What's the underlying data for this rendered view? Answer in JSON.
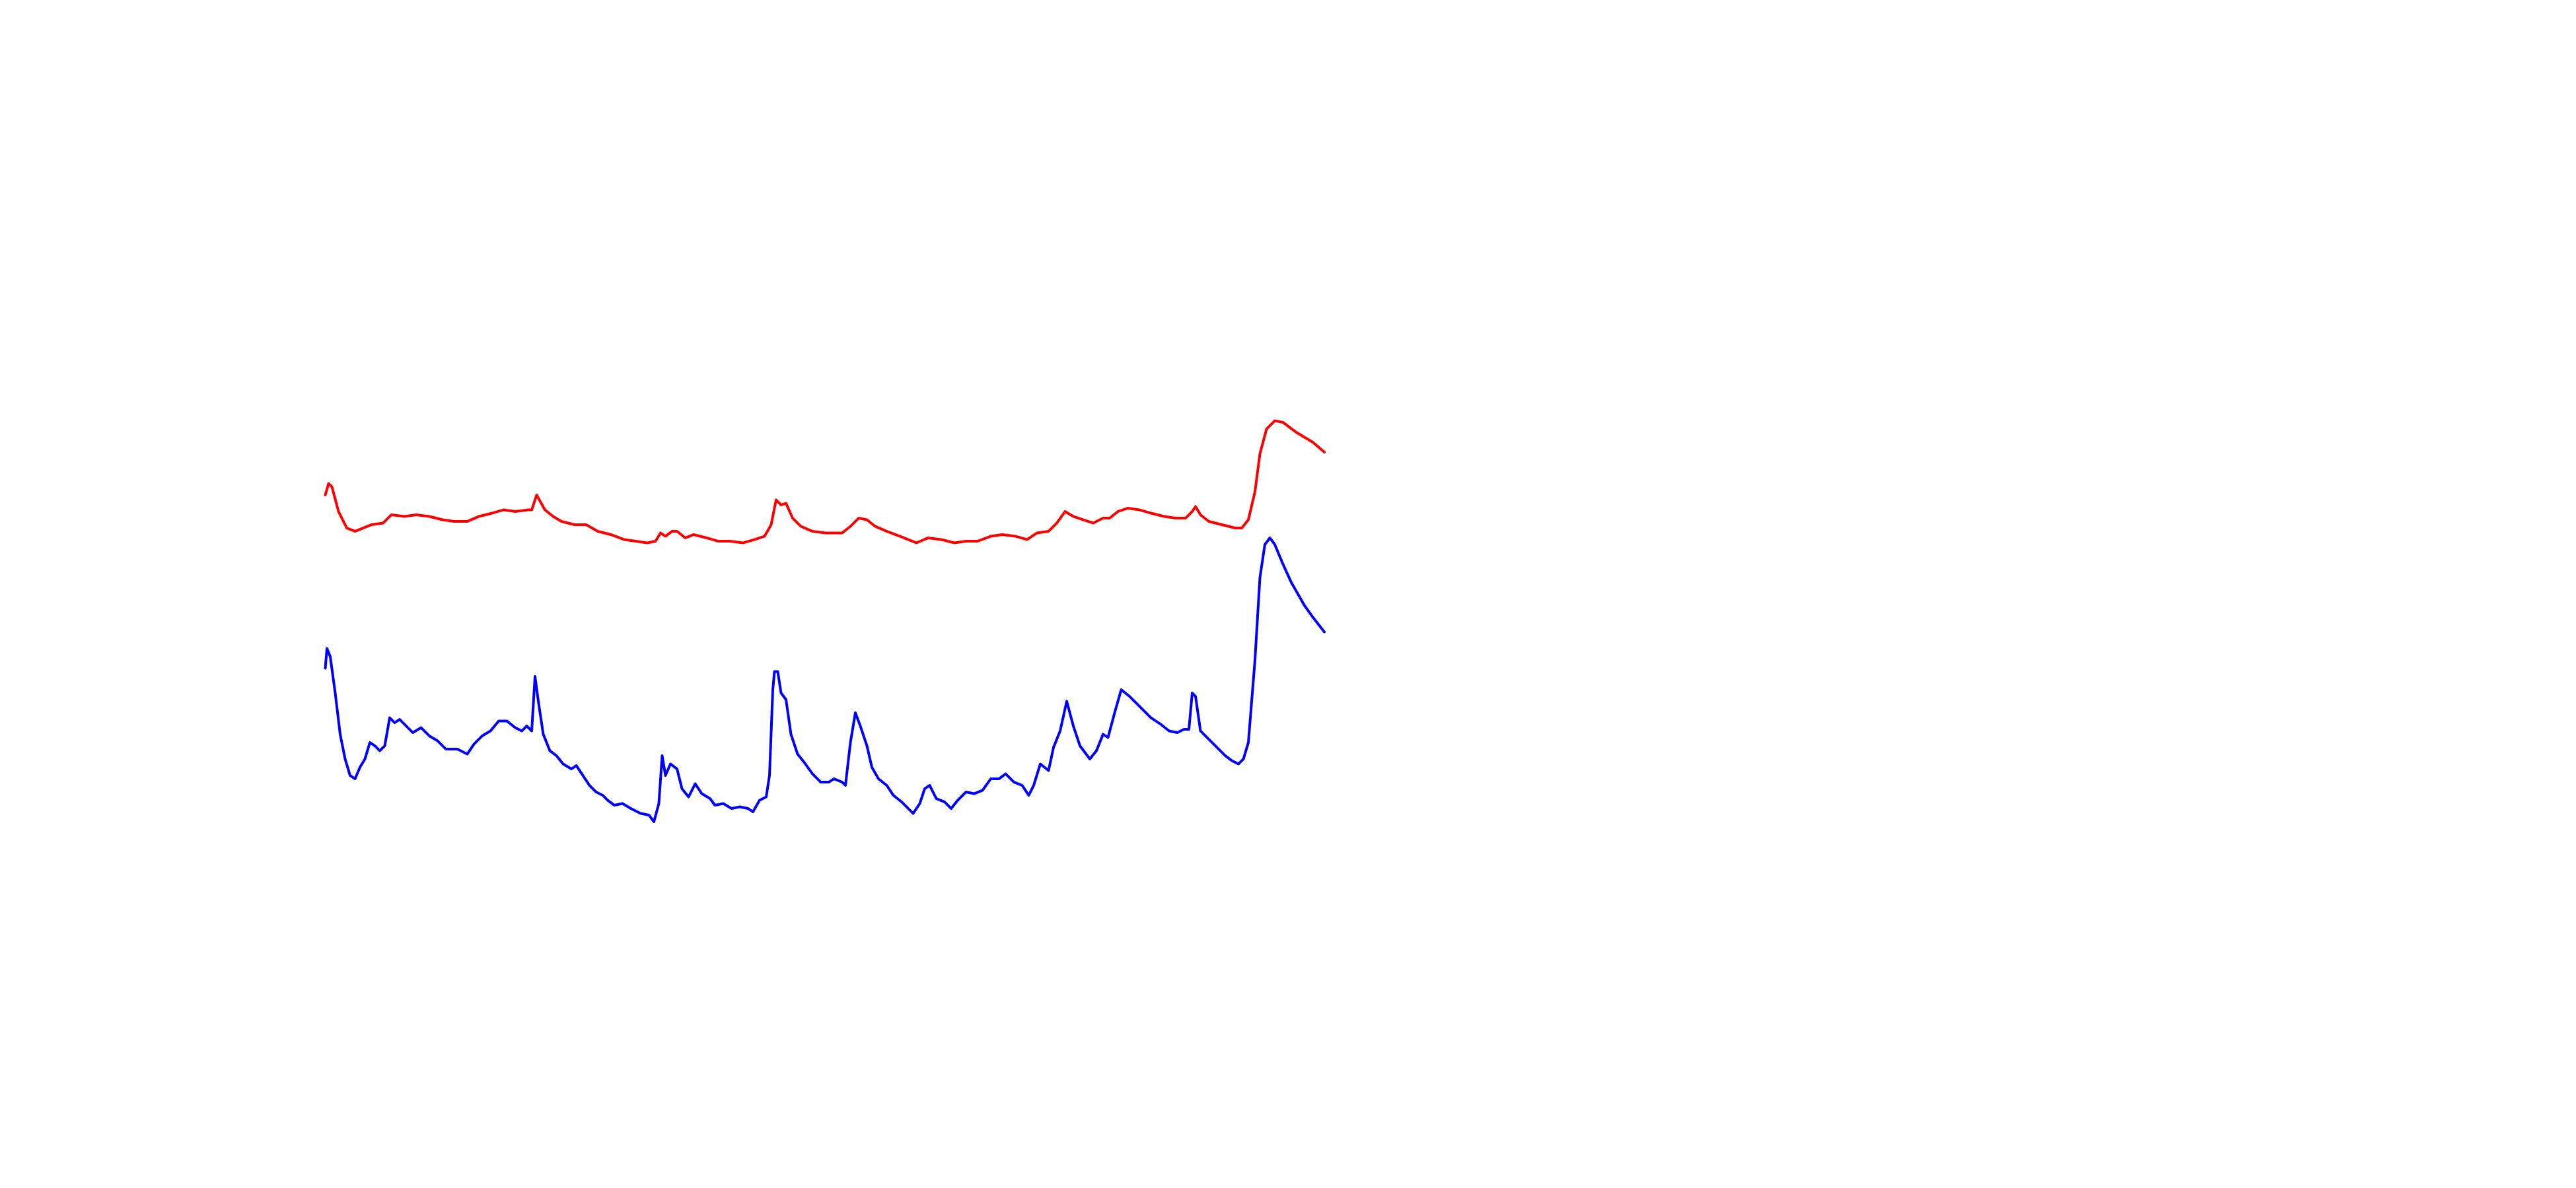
{
  "chart_data": {
    "type": "line",
    "xlim": [
      0,
      1560
    ],
    "ylim": [
      0,
      720
    ],
    "series": [
      {
        "color": "#ff0000",
        "x": [
          197,
          199,
          201,
          205,
          210,
          215,
          220,
          225,
          232,
          237,
          245,
          252,
          260,
          268,
          275,
          283,
          290,
          298,
          305,
          312,
          320,
          322,
          325,
          330,
          335,
          340,
          348,
          355,
          362,
          370,
          378,
          385,
          392,
          397,
          400,
          403,
          407,
          410,
          415,
          420,
          428,
          435,
          442,
          450,
          457,
          463,
          467,
          470,
          473,
          476,
          480,
          485,
          492,
          500,
          510,
          515,
          520,
          525,
          530,
          537,
          545,
          555,
          562,
          570,
          578,
          585,
          592,
          600,
          607,
          615,
          622,
          628,
          635,
          640,
          645,
          650,
          656,
          662,
          668,
          672,
          677,
          683,
          690,
          697,
          705,
          712,
          718,
          722,
          724,
          727,
          732,
          740,
          748,
          752,
          756,
          760,
          763,
          767,
          772,
          777,
          785,
          795,
          802
        ],
        "values": [
          420,
          427,
          425,
          410,
          400,
          398,
          400,
          402,
          403,
          408,
          407,
          408,
          407,
          405,
          404,
          404,
          407,
          409,
          411,
          410,
          411,
          411,
          420,
          411,
          407,
          404,
          402,
          402,
          398,
          396,
          393,
          392,
          391,
          392,
          397,
          395,
          398,
          398,
          394,
          396,
          394,
          392,
          392,
          391,
          393,
          395,
          402,
          417,
          414,
          415,
          406,
          401,
          398,
          397,
          397,
          401,
          406,
          405,
          401,
          398,
          395,
          391,
          394,
          393,
          391,
          392,
          392,
          395,
          396,
          395,
          393,
          397,
          398,
          403,
          410,
          407,
          405,
          403,
          406,
          406,
          410,
          412,
          411,
          409,
          407,
          406,
          406,
          410,
          413,
          408,
          404,
          402,
          400,
          400,
          405,
          422,
          445,
          460,
          465,
          464,
          458,
          452,
          446
        ]
      },
      {
        "color": "#0000ff",
        "x": [
          197,
          198,
          200,
          203,
          206,
          209,
          212,
          215,
          218,
          221,
          224,
          227,
          230,
          233,
          236,
          239,
          242,
          246,
          250,
          255,
          260,
          265,
          270,
          277,
          283,
          287,
          292,
          297,
          302,
          307,
          312,
          316,
          319,
          322,
          324,
          326,
          329,
          333,
          337,
          341,
          346,
          349,
          353,
          357,
          361,
          365,
          368,
          372,
          377,
          382,
          388,
          393,
          396,
          399,
          401,
          403,
          406,
          410,
          413,
          417,
          421,
          425,
          430,
          433,
          438,
          443,
          448,
          453,
          456,
          460,
          464,
          466,
          468,
          469,
          471,
          473,
          476,
          479,
          483,
          487,
          492,
          497,
          502,
          505,
          510,
          512,
          515,
          518,
          521,
          525,
          528,
          532,
          537,
          541,
          546,
          550,
          553,
          557,
          560,
          563,
          567,
          572,
          576,
          580,
          585,
          590,
          595,
          600,
          605,
          609,
          614,
          619,
          623,
          626,
          630,
          635,
          638,
          642,
          646,
          650,
          654,
          660,
          664,
          668,
          671,
          675,
          679,
          684,
          690,
          697,
          703,
          708,
          713,
          717,
          720,
          722,
          724,
          727,
          732,
          737,
          742,
          746,
          750,
          753,
          756,
          760,
          763,
          766,
          769,
          772,
          777,
          782,
          790,
          795,
          802
        ],
        "values": [
          315,
          327,
          322,
          300,
          275,
          260,
          250,
          248,
          255,
          260,
          270,
          268,
          265,
          268,
          285,
          282,
          284,
          280,
          276,
          279,
          274,
          271,
          266,
          266,
          263,
          269,
          274,
          277,
          283,
          283,
          279,
          277,
          280,
          277,
          310,
          295,
          275,
          265,
          262,
          257,
          254,
          256,
          250,
          244,
          240,
          238,
          235,
          232,
          233,
          230,
          227,
          226,
          222,
          233,
          262,
          250,
          257,
          254,
          242,
          237,
          245,
          239,
          236,
          232,
          233,
          230,
          231,
          230,
          228,
          235,
          237,
          250,
          302,
          313,
          313,
          300,
          296,
          275,
          263,
          258,
          251,
          246,
          246,
          248,
          246,
          244,
          270,
          288,
          280,
          268,
          255,
          248,
          244,
          238,
          234,
          230,
          227,
          233,
          242,
          244,
          236,
          234,
          230,
          235,
          240,
          239,
          241,
          248,
          248,
          251,
          246,
          244,
          238,
          244,
          257,
          253,
          267,
          277,
          295,
          280,
          268,
          260,
          265,
          275,
          273,
          288,
          302,
          298,
          292,
          285,
          281,
          277,
          276,
          278,
          278,
          300,
          298,
          277,
          272,
          267,
          262,
          259,
          257,
          260,
          270,
          320,
          370,
          390,
          394,
          390,
          378,
          367,
          353,
          346,
          337
        ]
      }
    ]
  }
}
